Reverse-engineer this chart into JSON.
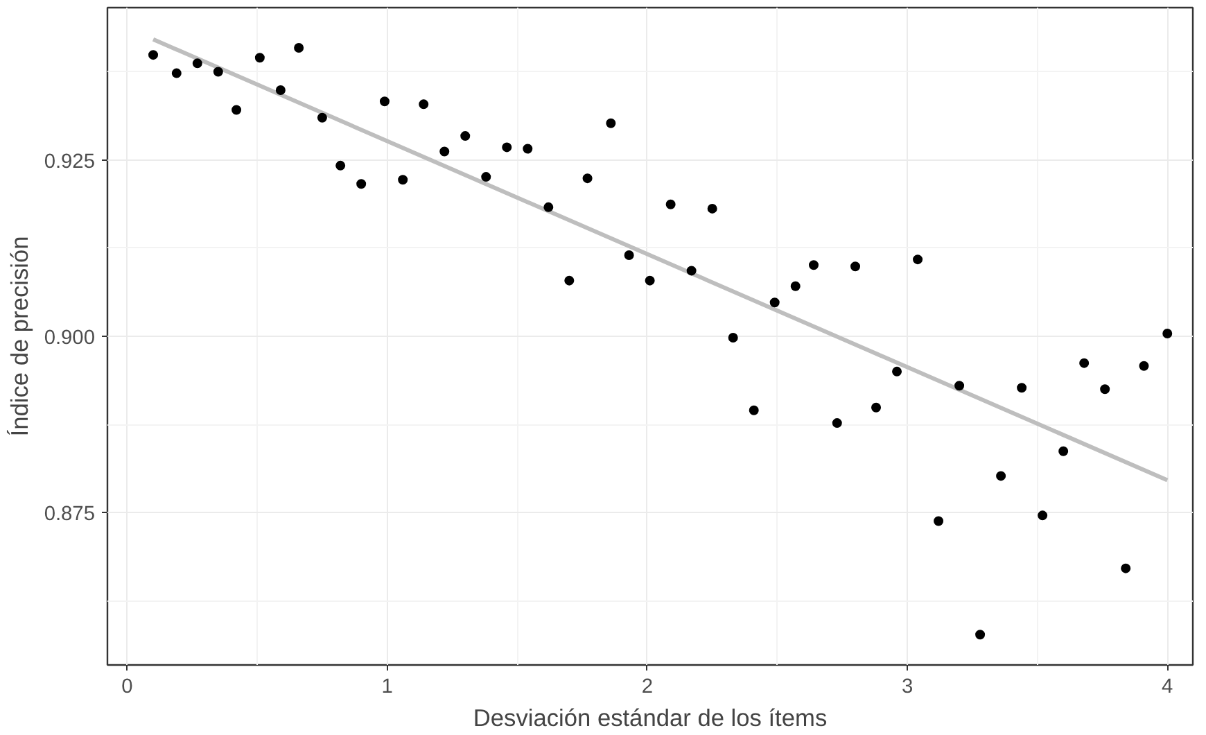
{
  "chart_data": {
    "type": "scatter",
    "xlabel": "Desviación estándar de los ítems",
    "ylabel": "Índice de precisión",
    "x": [
      0.1,
      0.19,
      0.27,
      0.35,
      0.42,
      0.51,
      0.59,
      0.66,
      0.75,
      0.82,
      0.9,
      0.99,
      1.06,
      1.14,
      1.22,
      1.3,
      1.38,
      1.46,
      1.54,
      1.62,
      1.7,
      1.77,
      1.86,
      1.93,
      2.01,
      2.09,
      2.17,
      2.25,
      2.33,
      2.41,
      2.49,
      2.57,
      2.64,
      2.73,
      2.8,
      2.88,
      2.96,
      3.04,
      3.12,
      3.2,
      3.28,
      3.36,
      3.44,
      3.52,
      3.6,
      3.68,
      3.76,
      3.84,
      3.91,
      4.0
    ],
    "series": [
      {
        "color": "#000000",
        "marker": "circle",
        "values": [
          0.9399,
          0.9373,
          0.9387,
          0.9375,
          0.9321,
          0.9395,
          0.9349,
          0.9409,
          0.931,
          0.9242,
          0.9216,
          0.9333,
          0.9222,
          0.9329,
          0.9262,
          0.9284,
          0.9226,
          0.9268,
          0.9266,
          0.9183,
          0.9079,
          0.9224,
          0.9302,
          0.9115,
          0.9079,
          0.9187,
          0.9093,
          0.9181,
          0.8998,
          0.8895,
          0.9048,
          0.9071,
          0.9101,
          0.8877,
          0.9099,
          0.8899,
          0.895,
          0.9109,
          0.8738,
          0.893,
          0.8577,
          0.8802,
          0.8927,
          0.8746,
          0.8837,
          0.8962,
          0.8925,
          0.8671,
          0.8958,
          0.9004
        ]
      },
      {
        "type": "line",
        "color": "#bebebe",
        "x": [
          0.1,
          4.0
        ],
        "values": [
          0.9421,
          0.8796
        ]
      }
    ],
    "xlim": [
      -0.076,
      4.098
    ],
    "ylim": [
      0.8534,
      0.9466
    ],
    "xticks": [
      0,
      1,
      2,
      3,
      4
    ],
    "yticks": [
      {
        "value": 0.875,
        "label": "0.875"
      },
      {
        "value": 0.9,
        "label": "0.900"
      },
      {
        "value": 0.925,
        "label": "0.925"
      }
    ],
    "grid": true
  }
}
